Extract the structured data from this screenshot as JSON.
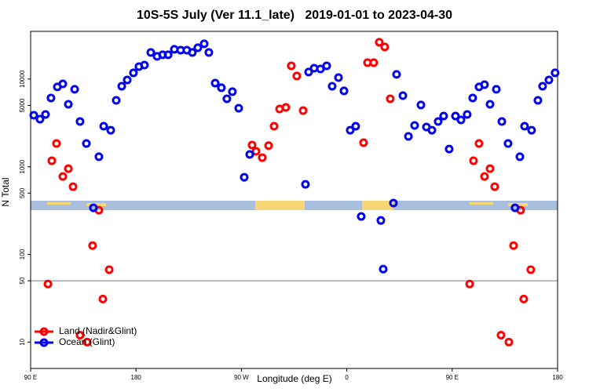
{
  "chart_data": {
    "type": "scatter",
    "title": "10S-5S July (Ver 11.1_late)   2019-01-01 to 2023-04-30",
    "xlabel": "Longitude (deg E)",
    "ylabel": "N Total",
    "xlim": [
      90,
      540
    ],
    "ylim": [
      5,
      35000
    ],
    "log_y": true,
    "hline": 50,
    "legend": "bottom-left",
    "xticks": [
      {
        "value": 90,
        "label": "90 E"
      },
      {
        "value": 180,
        "label": "180"
      },
      {
        "value": 270,
        "label": "90 W"
      },
      {
        "value": 360,
        "label": "0"
      },
      {
        "value": 450,
        "label": "90 E"
      },
      {
        "value": 540,
        "label": "180"
      }
    ],
    "yticks": [
      10,
      50,
      100,
      500,
      1000,
      5000,
      10000
    ],
    "series": [
      {
        "name": "Land (Nadir&Glint)",
        "color": "#ff0000",
        "x": [
          104.8,
          108.1,
          112.1,
          117.5,
          122.2,
          126.2,
          132.2,
          138.3,
          142.9,
          148.3,
          151.7,
          157.1,
          279.1,
          282.5,
          287.8,
          293.2,
          297.9,
          302.6,
          307.9,
          312.6,
          317.3,
          322.7,
          374.3,
          377.7,
          383.0,
          387.7,
          392.4,
          397.1,
          464.9,
          468.2,
          472.9,
          477.6,
          482.3,
          486.3,
          491.7,
          498.4,
          502.4,
          508.4,
          511.1,
          517.1
        ],
        "values": [
          46,
          1170,
          1840,
          774,
          951,
          592,
          12,
          10,
          126,
          319,
          31,
          67,
          1770,
          1500,
          1270,
          1740,
          2900,
          4560,
          4750,
          14160,
          10840,
          4370,
          1880,
          15380,
          15380,
          26300,
          23230,
          5960,
          46,
          1170,
          1840,
          774,
          951,
          592,
          12,
          10,
          126,
          319,
          31,
          67
        ]
      },
      {
        "name": "Ocean (Glint)",
        "color": "#0000ee",
        "x": [
          92.7,
          98.0,
          102.7,
          107.4,
          112.8,
          117.5,
          122.2,
          127.6,
          132.2,
          137.6,
          143.6,
          148.3,
          152.4,
          158.4,
          163.1,
          167.8,
          172.5,
          177.8,
          182.5,
          187.2,
          192.6,
          198.0,
          202.7,
          207.4,
          212.7,
          218.1,
          223.4,
          228.1,
          232.8,
          238.2,
          242.2,
          247.6,
          252.9,
          257.6,
          262.3,
          267.7,
          272.4,
          277.1,
          324.7,
          327.4,
          332.1,
          337.5,
          342.8,
          347.5,
          352.9,
          357.6,
          362.9,
          367.6,
          372.3,
          389.1,
          391.1,
          399.8,
          402.5,
          407.9,
          412.6,
          417.9,
          423.3,
          428.0,
          432.7,
          438.0,
          442.7,
          447.4,
          452.8,
          457.5,
          462.8,
          467.5,
          472.9,
          477.6,
          482.3,
          487.7,
          492.4,
          497.7,
          503.7,
          507.8,
          511.8,
          517.8,
          523.2,
          527.2,
          532.6,
          537.9
        ],
        "values": [
          3870,
          3490,
          3950,
          6080,
          8130,
          8810,
          5160,
          7640,
          3280,
          1840,
          340,
          1300,
          2900,
          2610,
          5720,
          8290,
          9770,
          11770,
          13870,
          14450,
          20100,
          18150,
          18920,
          18920,
          21830,
          21380,
          21380,
          20100,
          22750,
          25230,
          20100,
          9000,
          7960,
          5960,
          7180,
          4650,
          759,
          1380,
          630,
          12020,
          13310,
          13040,
          14160,
          8290,
          10400,
          7330,
          2610,
          2900,
          271,
          244,
          68,
          385,
          11300,
          6470,
          2220,
          2960,
          5060,
          2840,
          2610,
          3280,
          3790,
          1590,
          3790,
          3420,
          3950,
          6080,
          8130,
          8630,
          5160,
          7640,
          3280,
          1840,
          340,
          1300,
          2900,
          2610,
          5720,
          8290,
          9770,
          11770
        ]
      }
    ]
  }
}
